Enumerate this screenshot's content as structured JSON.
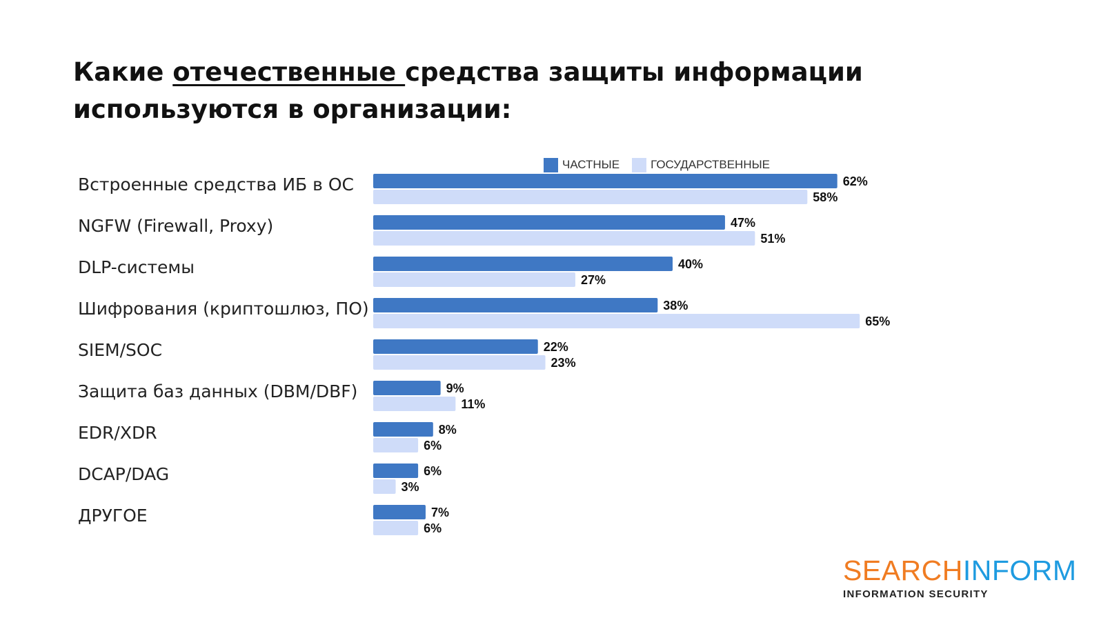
{
  "title": {
    "part1": "Какие ",
    "underlined": "отечественные ",
    "part2": "средства защиты информации",
    "line2": "используются в организации:"
  },
  "logo": {
    "word_orange": "SEARCH",
    "word_blue": "INFORM",
    "tagline": "INFORMATION SECURITY"
  },
  "colors": {
    "private": "#3f78c4",
    "government": "#cfdcf9"
  },
  "chart_data": {
    "type": "bar",
    "orientation": "horizontal",
    "legend_position": "top",
    "grid": false,
    "value_suffix": "%",
    "categories": [
      "Встроенные средства ИБ в ОС",
      "NGFW (Firewall, Proxy)",
      "DLP-системы",
      "Шифрования (криптошлюз, ПО)",
      "SIEM/SOC",
      "Защита баз данных (DBM/DBF)",
      "EDR/XDR",
      "DCAP/DAG",
      "ДРУГОЕ"
    ],
    "series": [
      {
        "name": "ЧАСТНЫЕ",
        "values": [
          62,
          47,
          40,
          38,
          22,
          9,
          8,
          6,
          7
        ]
      },
      {
        "name": "ГОСУДАРСТВЕННЫЕ",
        "values": [
          58,
          51,
          27,
          65,
          23,
          11,
          6,
          3,
          6
        ]
      }
    ],
    "xlim": [
      0,
      100
    ]
  }
}
